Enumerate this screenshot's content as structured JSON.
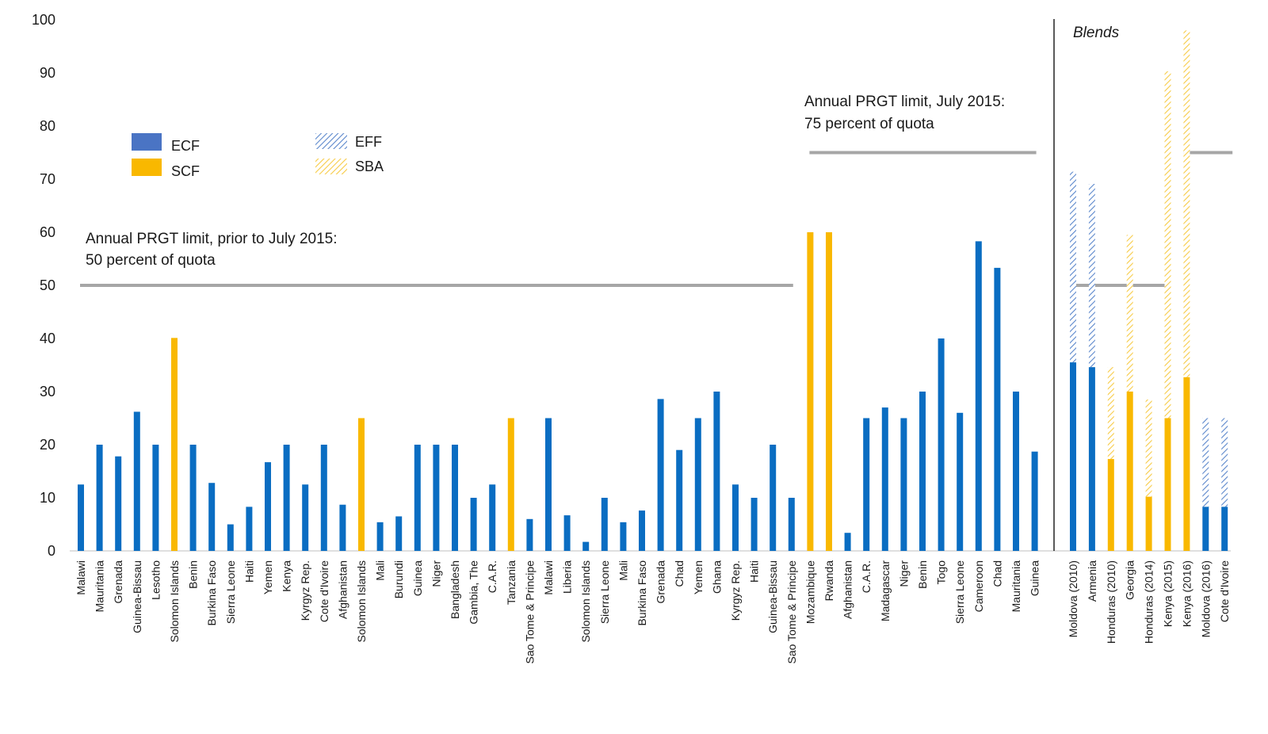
{
  "chart_data": {
    "type": "bar",
    "title": "",
    "xlabel": "",
    "ylabel": "",
    "ylim": [
      0,
      100
    ],
    "yticks": [
      0,
      10,
      20,
      30,
      40,
      50,
      60,
      70,
      80,
      90,
      100
    ],
    "grid": false,
    "colors": {
      "ECF": "#0a6dc2",
      "SCF": "#f9b800",
      "EFF": "#5b87cc",
      "SBA": "#f7cb45",
      "limit_line": "#a6a6a6",
      "divider": "#000000",
      "axis": "#bfbfbf"
    },
    "legend": {
      "position": "top-left",
      "entries": [
        {
          "name": "ECF",
          "style": "solid",
          "color": "#4a74c4"
        },
        {
          "name": "SCF",
          "style": "solid",
          "color": "#f9b800"
        },
        {
          "name": "EFF",
          "style": "hatched",
          "color": "#5b87cc"
        },
        {
          "name": "SBA",
          "style": "hatched",
          "color": "#f7cb45"
        }
      ]
    },
    "annotations": {
      "limit_prior": [
        "Annual PRGT limit, prior to July 2015:",
        "50 percent of quota"
      ],
      "limit_2015": [
        "Annual PRGT limit, July 2015:",
        "75 percent of quota"
      ],
      "blends": "Blends"
    },
    "reference_lines": [
      {
        "label": "limit_prior",
        "value": 50,
        "from": "Malawi",
        "to": "Sao Tome & Principe"
      },
      {
        "label": "limit_2015",
        "value": 75,
        "from": "Mozambique",
        "to": "Guinea"
      },
      {
        "label": "blends_50",
        "value": 50,
        "from": "Moldova (2010)",
        "to": "Kenya (2015)"
      },
      {
        "label": "blends_75",
        "value": 75,
        "from": "Kenya (2016)",
        "to": "Cote d'Ivoire"
      }
    ],
    "categories": [
      "Malawi",
      "Mauritania",
      "Grenada",
      "Guinea-Bissau",
      "Lesotho",
      "Solomon Islands",
      "Benin",
      "Burkina Faso",
      "Sierra Leone",
      "Haiti",
      "Yemen",
      "Kenya",
      "Kyrgyz Rep.",
      "Cote d'Ivoire",
      "Afghanistan",
      "Solomon Islands",
      "Mali",
      "Burundi",
      "Guinea",
      "Niger",
      "Bangladesh",
      "Gambia, The",
      "C.A.R.",
      "Tanzania",
      "Sao Tome & Principe",
      "Malawi",
      "Liberia",
      "Solomon Islands",
      "Sierra Leone",
      "Mali",
      "Burkina Faso",
      "Grenada",
      "Chad",
      "Yemen",
      "Ghana",
      "Kyrgyz Rep.",
      "Haiti",
      "Guinea-Bissau",
      "Sao Tome & Principe",
      "Mozambique",
      "Rwanda",
      "Afghanistan",
      "C.A.R.",
      "Madagascar",
      "Niger",
      "Benin",
      "Togo",
      "Sierra Leone",
      "Cameroon",
      "Chad",
      "Mauritania",
      "Guinea"
    ],
    "series": [
      {
        "name": "ECF",
        "values": [
          12.5,
          20,
          17.8,
          26.2,
          20,
          null,
          20,
          12.8,
          5,
          8.3,
          16.7,
          20,
          12.5,
          20,
          8.7,
          null,
          5.4,
          6.5,
          20,
          20,
          20,
          10,
          12.5,
          null,
          6,
          25,
          6.7,
          1.7,
          10,
          5.4,
          7.6,
          28.6,
          19,
          25,
          30,
          12.5,
          10,
          20,
          10,
          null,
          null,
          3.4,
          25,
          27,
          25,
          30,
          40,
          26,
          58.3,
          53.3,
          30,
          18.7
        ]
      },
      {
        "name": "SCF",
        "values": [
          null,
          null,
          null,
          null,
          null,
          40.1,
          null,
          null,
          null,
          null,
          null,
          null,
          null,
          null,
          null,
          25,
          null,
          null,
          null,
          null,
          null,
          null,
          null,
          25,
          null,
          null,
          null,
          null,
          null,
          null,
          null,
          null,
          null,
          null,
          null,
          null,
          null,
          null,
          null,
          60,
          60,
          null,
          null,
          null,
          null,
          null,
          null,
          null,
          null,
          null,
          null,
          null
        ]
      }
    ],
    "blends": {
      "categories": [
        "Moldova (2010)",
        "Armenia",
        "Honduras (2010)",
        "Georgia",
        "Honduras (2014)",
        "Kenya (2015)",
        "Kenya (2016)",
        "Moldova (2016)",
        "Cote d'Ivoire"
      ],
      "stacks": [
        {
          "bottom": {
            "facility": "ECF",
            "value": 35.5
          },
          "top": {
            "facility": "EFF",
            "value": 35.9
          }
        },
        {
          "bottom": {
            "facility": "ECF",
            "value": 34.6
          },
          "top": {
            "facility": "EFF",
            "value": 34.5
          }
        },
        {
          "bottom": {
            "facility": "SCF",
            "value": 17.3
          },
          "top": {
            "facility": "SBA",
            "value": 17.3
          }
        },
        {
          "bottom": {
            "facility": "SCF",
            "value": 30
          },
          "top": {
            "facility": "SBA",
            "value": 29.5
          }
        },
        {
          "bottom": {
            "facility": "SCF",
            "value": 10.2
          },
          "top": {
            "facility": "SBA",
            "value": 18.3
          }
        },
        {
          "bottom": {
            "facility": "SCF",
            "value": 25
          },
          "top": {
            "facility": "SBA",
            "value": 65.3
          }
        },
        {
          "bottom": {
            "facility": "SCF",
            "value": 32.7
          },
          "top": {
            "facility": "SBA",
            "value": 65.3
          }
        },
        {
          "bottom": {
            "facility": "ECF",
            "value": 8.3
          },
          "top": {
            "facility": "EFF",
            "value": 16.7
          }
        },
        {
          "bottom": {
            "facility": "ECF",
            "value": 8.3
          },
          "top": {
            "facility": "EFF",
            "value": 16.7
          }
        }
      ]
    }
  }
}
